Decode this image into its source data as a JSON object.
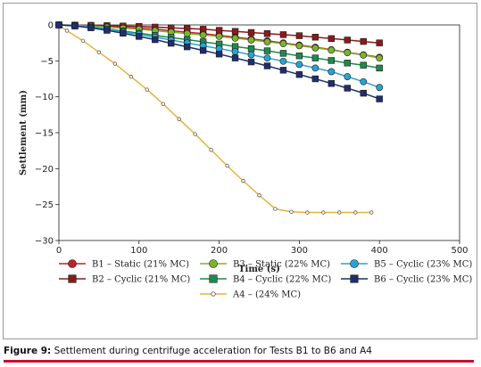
{
  "chart_data": {
    "type": "line",
    "title": "",
    "xlabel": "Time (s)",
    "ylabel": "Settlement (mm)",
    "xlim": [
      0,
      500
    ],
    "ylim": [
      -30,
      0
    ],
    "x_ticks": [
      0,
      100,
      200,
      300,
      400,
      500
    ],
    "y_ticks": [
      0,
      -5,
      -10,
      -15,
      -20,
      -25,
      -30
    ],
    "grid": false,
    "legend_position": "bottom",
    "series": [
      {
        "name": "B1 – Static (21% MC)",
        "color": "#c0222a",
        "marker": "circle",
        "x": [
          0,
          20,
          40,
          60,
          80,
          100,
          120,
          140,
          160,
          180,
          200,
          220,
          240,
          260,
          280,
          300,
          320,
          340,
          360,
          380,
          400
        ],
        "y": [
          0,
          -0.03,
          -0.1,
          -0.2,
          -0.32,
          -0.45,
          -0.6,
          -0.8,
          -1.0,
          -1.2,
          -1.45,
          -1.7,
          -1.95,
          -2.2,
          -2.5,
          -2.8,
          -3.1,
          -3.45,
          -3.8,
          -4.15,
          -4.5
        ]
      },
      {
        "name": "B2 – Cyclic (21% MC)",
        "color": "#8b1a1a",
        "marker": "square",
        "x": [
          0,
          20,
          40,
          60,
          80,
          100,
          120,
          140,
          160,
          180,
          200,
          220,
          240,
          260,
          280,
          300,
          320,
          340,
          360,
          380,
          400
        ],
        "y": [
          0,
          -0.02,
          -0.05,
          -0.1,
          -0.15,
          -0.2,
          -0.3,
          -0.4,
          -0.5,
          -0.6,
          -0.75,
          -0.9,
          -1.05,
          -1.2,
          -1.35,
          -1.5,
          -1.7,
          -1.9,
          -2.1,
          -2.3,
          -2.5
        ]
      },
      {
        "name": "B3 – Static (22% MC)",
        "color": "#7bb52f",
        "marker": "circle",
        "x": [
          0,
          20,
          40,
          60,
          80,
          100,
          120,
          140,
          160,
          180,
          200,
          220,
          240,
          260,
          280,
          300,
          320,
          340,
          360,
          380,
          400
        ],
        "y": [
          0,
          -0.05,
          -0.15,
          -0.3,
          -0.45,
          -0.6,
          -0.8,
          -1.0,
          -1.2,
          -1.4,
          -1.6,
          -1.85,
          -2.1,
          -2.35,
          -2.6,
          -2.9,
          -3.2,
          -3.5,
          -3.85,
          -4.2,
          -4.6
        ]
      },
      {
        "name": "B4 – Cyclic (22% MC)",
        "color": "#1e8a4e",
        "marker": "square",
        "x": [
          0,
          20,
          40,
          60,
          80,
          100,
          120,
          140,
          160,
          180,
          200,
          220,
          240,
          260,
          280,
          300,
          320,
          340,
          360,
          380,
          400
        ],
        "y": [
          0,
          -0.1,
          -0.3,
          -0.55,
          -0.85,
          -1.15,
          -1.45,
          -1.75,
          -2.05,
          -2.35,
          -2.65,
          -3.0,
          -3.3,
          -3.6,
          -3.95,
          -4.3,
          -4.6,
          -4.95,
          -5.3,
          -5.6,
          -6.0
        ]
      },
      {
        "name": "A4 – (24% MC)",
        "color": "#e8b23a",
        "marker": "dot",
        "x": [
          0,
          10,
          30,
          50,
          70,
          90,
          110,
          130,
          150,
          170,
          190,
          210,
          230,
          250,
          270,
          290,
          310,
          330,
          350,
          370,
          390
        ],
        "y": [
          0,
          -0.8,
          -2.2,
          -3.8,
          -5.4,
          -7.2,
          -9.0,
          -11.0,
          -13.1,
          -15.2,
          -17.4,
          -19.6,
          -21.7,
          -23.7,
          -25.6,
          -26.0,
          -26.1,
          -26.1,
          -26.1,
          -26.1,
          -26.1
        ]
      },
      {
        "name": "B5 – Cyclic (23% MC)",
        "color": "#29a3d4",
        "marker": "circle",
        "x": [
          0,
          20,
          40,
          60,
          80,
          100,
          120,
          140,
          160,
          180,
          200,
          220,
          240,
          260,
          280,
          300,
          320,
          340,
          360,
          380,
          400
        ],
        "y": [
          0,
          -0.1,
          -0.3,
          -0.6,
          -0.95,
          -1.3,
          -1.7,
          -2.1,
          -2.5,
          -2.9,
          -3.3,
          -3.7,
          -4.15,
          -4.6,
          -5.05,
          -5.5,
          -6.0,
          -6.5,
          -7.2,
          -7.9,
          -8.7
        ]
      },
      {
        "name": "B6 – Cyclic (23% MC)",
        "color": "#1f2f6e",
        "marker": "square",
        "x": [
          0,
          20,
          40,
          60,
          80,
          100,
          120,
          140,
          160,
          180,
          200,
          220,
          240,
          260,
          280,
          300,
          320,
          340,
          360,
          380,
          400
        ],
        "y": [
          0,
          -0.15,
          -0.4,
          -0.75,
          -1.15,
          -1.6,
          -2.05,
          -2.55,
          -3.05,
          -3.55,
          -4.05,
          -4.6,
          -5.15,
          -5.7,
          -6.3,
          -6.9,
          -7.5,
          -8.15,
          -8.8,
          -9.5,
          -10.3
        ]
      }
    ]
  },
  "caption": {
    "label": "Figure 9:",
    "text": "Settlement during centrifuge acceleration for Tests B1 to B6 and A4"
  }
}
